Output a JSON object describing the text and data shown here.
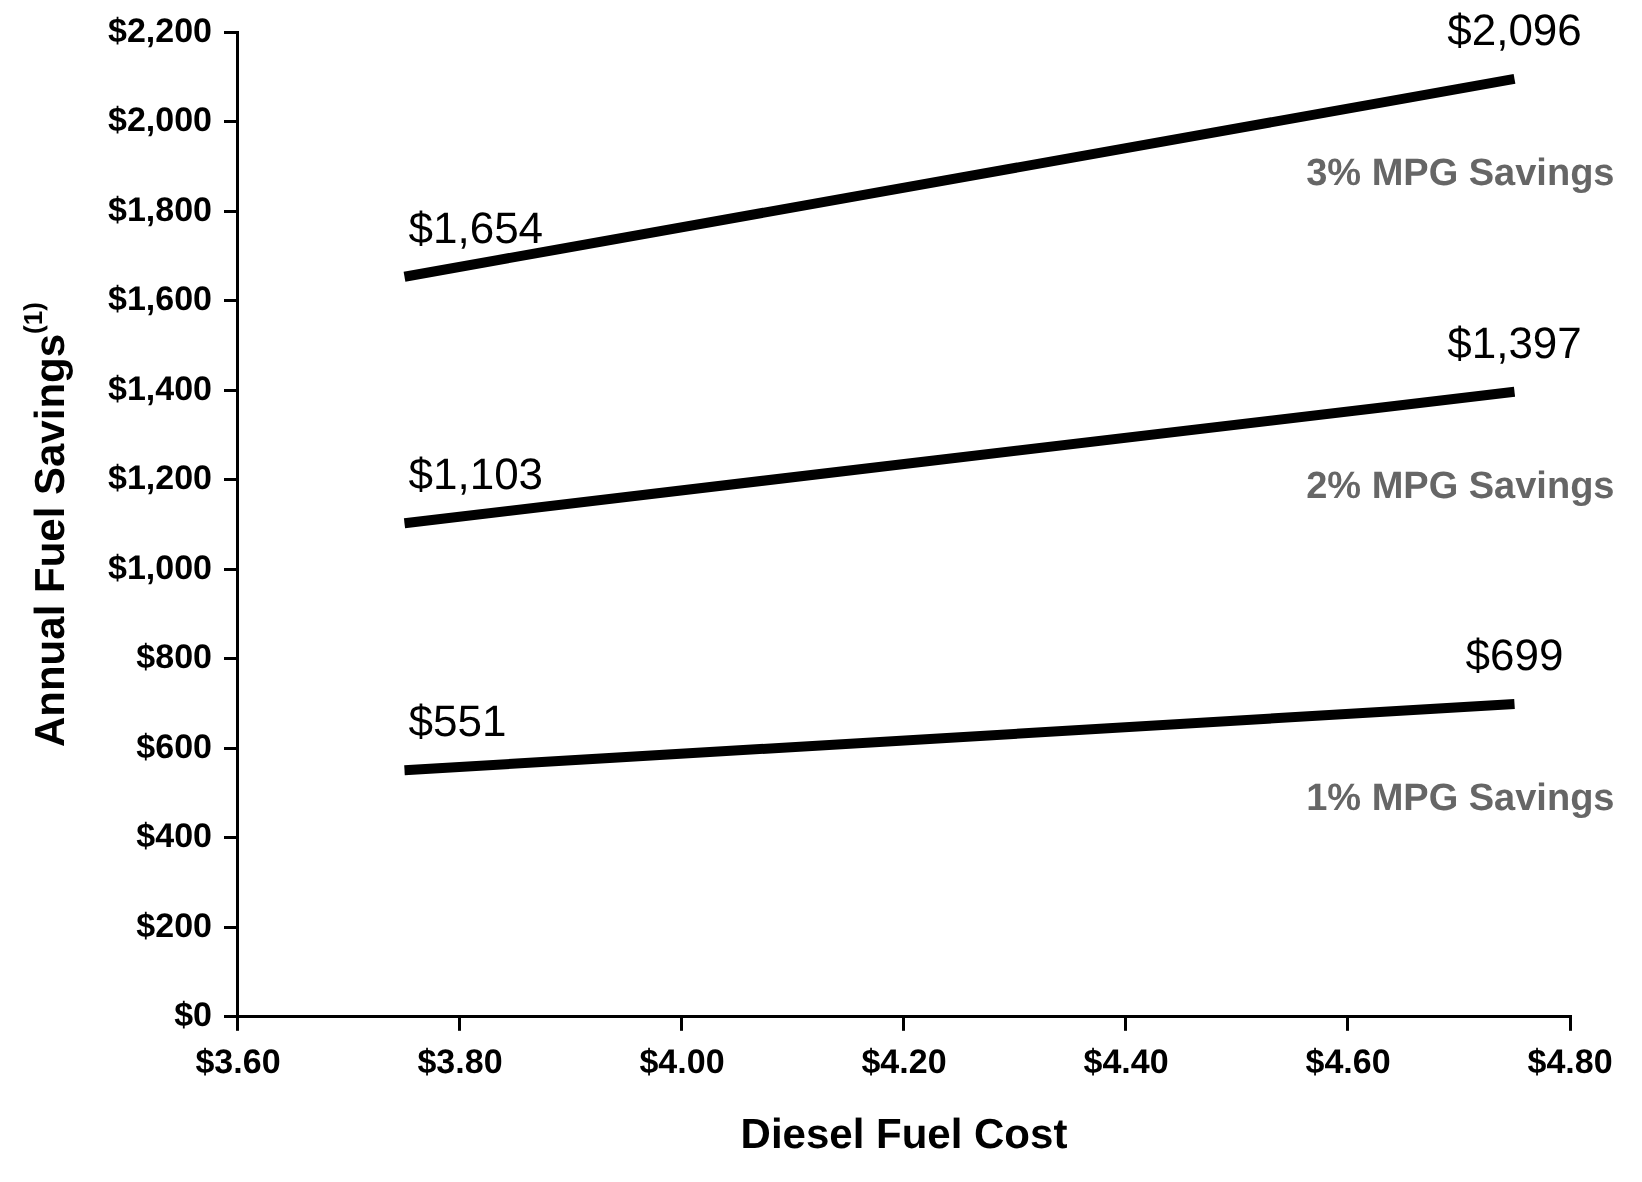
{
  "chart_data": {
    "type": "line",
    "xlabel": "Diesel Fuel Cost",
    "ylabel": "Annual Fuel Savings$^{(1)}$",
    "x": [
      3.75,
      4.75
    ],
    "series": [
      {
        "name": "3% MPG Savings",
        "color": "#000000",
        "values": [
          1654,
          2096
        ],
        "value_labels": [
          "$1,654",
          "$2,096"
        ]
      },
      {
        "name": "2% MPG Savings",
        "color": "#000000",
        "values": [
          1103,
          1397
        ],
        "value_labels": [
          "$1,103",
          "$1,397"
        ]
      },
      {
        "name": "1% MPG Savings",
        "color": "#000000",
        "values": [
          551,
          699
        ],
        "value_labels": [
          "$551",
          "$699"
        ]
      }
    ],
    "xlim": [
      3.6,
      4.8
    ],
    "xticks": [
      {
        "value": 3.6,
        "label": "$3.60"
      },
      {
        "value": 3.8,
        "label": "$3.80"
      },
      {
        "value": 4.0,
        "label": "$4.00"
      },
      {
        "value": 4.2,
        "label": "$4.20"
      },
      {
        "value": 4.4,
        "label": "$4.40"
      },
      {
        "value": 4.6,
        "label": "$4.60"
      },
      {
        "value": 4.8,
        "label": "$4.80"
      }
    ],
    "ylim": [
      0,
      2200
    ],
    "yticks": [
      {
        "value": 0,
        "label": "$0"
      },
      {
        "value": 200,
        "label": "$200"
      },
      {
        "value": 400,
        "label": "$400"
      },
      {
        "value": 600,
        "label": "$600"
      },
      {
        "value": 800,
        "label": "$800"
      },
      {
        "value": 1000,
        "label": "$1,000"
      },
      {
        "value": 1200,
        "label": "$1,200"
      },
      {
        "value": 1400,
        "label": "$1,400"
      },
      {
        "value": 1600,
        "label": "$1,600"
      },
      {
        "value": 1800,
        "label": "$1,800"
      },
      {
        "value": 2000,
        "label": "$2,000"
      },
      {
        "value": 2200,
        "label": "$2,200"
      }
    ],
    "grid": false,
    "legend": false,
    "marker": "none",
    "line_style": "solid"
  }
}
